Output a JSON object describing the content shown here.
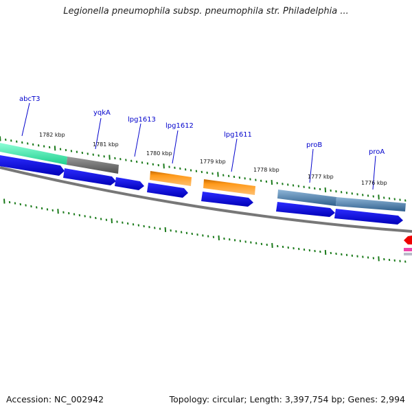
{
  "header": {
    "title": "Legionella pneumophila subsp. pneumophila str. Philadelphia ..."
  },
  "footer": {
    "accession": "Accession: NC_002942",
    "summary": "Topology: circular; Length: 3,397,754 bp; Genes: 2,994"
  },
  "colors": {
    "backbone": "#777777",
    "tick": "#1a7a1a",
    "label_line": "#0000cc",
    "forward_strand": "#0000ee",
    "abcT3": "#2de6a0",
    "yqkA": "#666666",
    "lpg1612": "#f08c10",
    "lpg1611": "#f08c10",
    "proB": "#4a7fae",
    "proA": "#4a7fae",
    "edge_red": "#ee0000",
    "edge_pink": "#ee44aa"
  },
  "scale_labels": [
    "1782 kbp",
    "1781 kbp",
    "1780 kbp",
    "1779 kbp",
    "1778 kbp",
    "1777 kbp",
    "1776 kbp"
  ],
  "genes": [
    {
      "name": "abcT3",
      "strand": "outer",
      "color": "abcT3"
    },
    {
      "name": "yqkA",
      "strand": "outer",
      "color": "yqkA"
    },
    {
      "name": "lpg1613",
      "strand": "forward",
      "color": "forward_strand"
    },
    {
      "name": "lpg1612",
      "strand": "outer",
      "color": "lpg1612"
    },
    {
      "name": "lpg1611",
      "strand": "outer",
      "color": "lpg1611"
    },
    {
      "name": "proB",
      "strand": "outer",
      "color": "proB"
    },
    {
      "name": "proA",
      "strand": "outer",
      "color": "proA"
    }
  ]
}
